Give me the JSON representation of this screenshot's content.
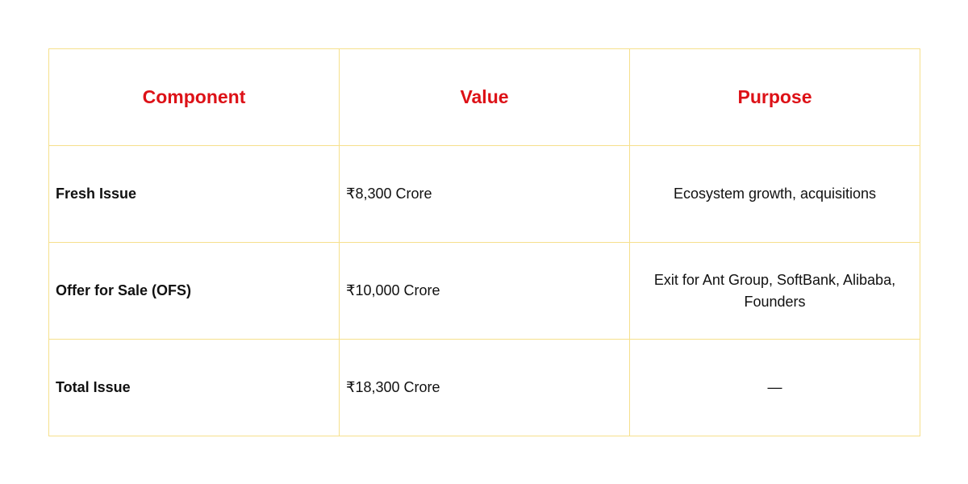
{
  "table": {
    "headers": [
      "Component",
      "Value",
      "Purpose"
    ],
    "rows": [
      [
        "Fresh Issue",
        "₹8,300 Crore",
        "Ecosystem growth, acquisitions"
      ],
      [
        "Offer for Sale (OFS)",
        "₹10,000 Crore",
        "Exit for Ant Group, SoftBank, Alibaba, Founders"
      ],
      [
        "Total Issue",
        "₹18,300 Crore",
        "—"
      ]
    ]
  },
  "colors": {
    "header_text": "#dd1117",
    "border": "#f6e08c"
  }
}
